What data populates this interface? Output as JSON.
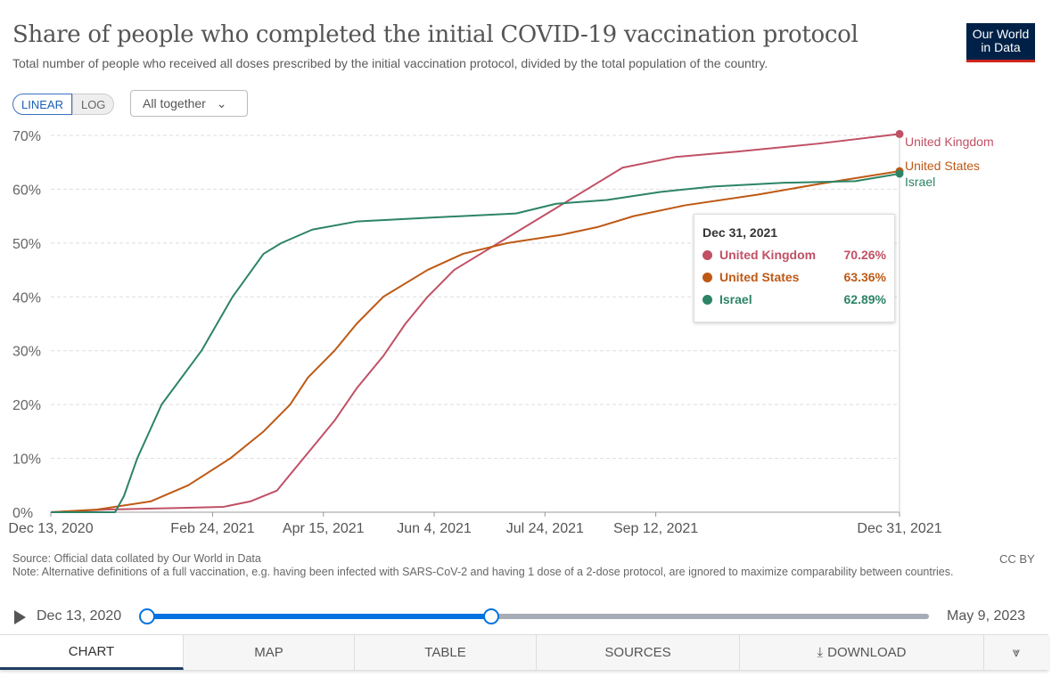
{
  "header": {
    "title": "Share of people who completed the initial COVID-19 vaccination protocol",
    "subtitle": "Total number of people who received all doses prescribed by the initial vaccination protocol, divided by the total population of the country.",
    "logo": "Our World in Data"
  },
  "controls": {
    "linear": "LINEAR",
    "log": "LOG",
    "facet": "All together"
  },
  "chart_data": {
    "type": "line",
    "x_unit": "days since Dec 13, 2020",
    "xlim": [
      0,
      383
    ],
    "ylim": [
      0,
      70
    ],
    "yticks": [
      0,
      10,
      20,
      30,
      40,
      50,
      60,
      70
    ],
    "ytick_labels": [
      "0%",
      "10%",
      "20%",
      "30%",
      "40%",
      "50%",
      "60%",
      "70%"
    ],
    "xticks": [
      0,
      73,
      123,
      173,
      223,
      273,
      383
    ],
    "xtick_labels": [
      "Dec 13, 2020",
      "Feb 24, 2021",
      "Apr 15, 2021",
      "Jun 4, 2021",
      "Jul 24, 2021",
      "Sep 12, 2021",
      "Dec 31, 2021"
    ],
    "grid": true,
    "legend": "right (line end labels)",
    "series": [
      {
        "name": "United Kingdom",
        "color": "#c15065",
        "points": [
          [
            0,
            0
          ],
          [
            25,
            0.5
          ],
          [
            60,
            0.8
          ],
          [
            78,
            1
          ],
          [
            90,
            2
          ],
          [
            102,
            4
          ],
          [
            110,
            8
          ],
          [
            118,
            12
          ],
          [
            128,
            17
          ],
          [
            138,
            23
          ],
          [
            150,
            29
          ],
          [
            160,
            35
          ],
          [
            170,
            40
          ],
          [
            182,
            45
          ],
          [
            194,
            48
          ],
          [
            210,
            52
          ],
          [
            226,
            56
          ],
          [
            242,
            60
          ],
          [
            258,
            64
          ],
          [
            282,
            66
          ],
          [
            310,
            67
          ],
          [
            347,
            68.5
          ],
          [
            383,
            70.26
          ]
        ]
      },
      {
        "name": "United States",
        "color": "#be5915",
        "points": [
          [
            0,
            0
          ],
          [
            21,
            0.5
          ],
          [
            45,
            2
          ],
          [
            62,
            5
          ],
          [
            81,
            10
          ],
          [
            96,
            15
          ],
          [
            108,
            20
          ],
          [
            116,
            25
          ],
          [
            128,
            30
          ],
          [
            138,
            35
          ],
          [
            150,
            40
          ],
          [
            170,
            45
          ],
          [
            186,
            48
          ],
          [
            206,
            50
          ],
          [
            230,
            51.5
          ],
          [
            247,
            53
          ],
          [
            263,
            55
          ],
          [
            286,
            57
          ],
          [
            319,
            59
          ],
          [
            347,
            61
          ],
          [
            383,
            63.36
          ]
        ]
      },
      {
        "name": "Israel",
        "color": "#2c8465",
        "points": [
          [
            0,
            0
          ],
          [
            29,
            0
          ],
          [
            33,
            3
          ],
          [
            39,
            10
          ],
          [
            50,
            20
          ],
          [
            68,
            30
          ],
          [
            82,
            40
          ],
          [
            96,
            48
          ],
          [
            104,
            50
          ],
          [
            118,
            52.5
          ],
          [
            138,
            54
          ],
          [
            170,
            54.7
          ],
          [
            210,
            55.5
          ],
          [
            228,
            57.3
          ],
          [
            251,
            58
          ],
          [
            275,
            59.5
          ],
          [
            299,
            60.5
          ],
          [
            331,
            61.2
          ],
          [
            363,
            61.5
          ],
          [
            383,
            62.89
          ]
        ]
      }
    ]
  },
  "tooltip": {
    "date": "Dec 31, 2021",
    "rows": [
      {
        "name": "United Kingdom",
        "value": "70.26%"
      },
      {
        "name": "United States",
        "value": "63.36%"
      },
      {
        "name": "Israel",
        "value": "62.89%"
      }
    ]
  },
  "footer": {
    "source": "Source: Official data collated by Our World in Data",
    "note": "Note: Alternative definitions of a full vaccination, e.g. having been infected with SARS-CoV-2 and having 1 dose of a 2-dose protocol, are ignored to maximize comparability between countries.",
    "license": "CC BY"
  },
  "timeline": {
    "start": "Dec 13, 2020",
    "end": "May 9, 2023",
    "selected_fraction_end": 0.44
  },
  "tabs": [
    "CHART",
    "MAP",
    "TABLE",
    "SOURCES",
    "DOWNLOAD"
  ]
}
